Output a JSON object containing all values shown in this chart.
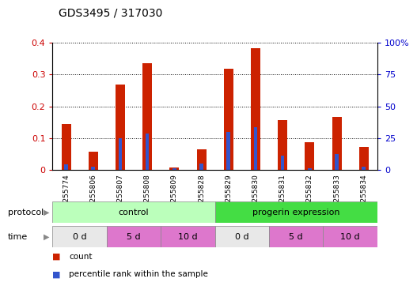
{
  "title": "GDS3495 / 317030",
  "samples": [
    "GSM255774",
    "GSM255806",
    "GSM255807",
    "GSM255808",
    "GSM255809",
    "GSM255828",
    "GSM255829",
    "GSM255830",
    "GSM255831",
    "GSM255832",
    "GSM255833",
    "GSM255834"
  ],
  "red_values": [
    0.145,
    0.057,
    0.268,
    0.335,
    0.008,
    0.065,
    0.318,
    0.383,
    0.158,
    0.088,
    0.168,
    0.072
  ],
  "blue_values": [
    0.018,
    0.01,
    0.1,
    0.115,
    0.005,
    0.02,
    0.12,
    0.135,
    0.045,
    0.005,
    0.05,
    0.01
  ],
  "ylim_left": [
    0,
    0.4
  ],
  "ylim_right": [
    0,
    100
  ],
  "yticks_left": [
    0.0,
    0.1,
    0.2,
    0.3,
    0.4
  ],
  "yticks_right": [
    0,
    25,
    50,
    75,
    100
  ],
  "ytick_labels_right": [
    "0",
    "25",
    "50",
    "75",
    "100%"
  ],
  "ytick_labels_left": [
    "0",
    "0.1",
    "0.2",
    "0.3",
    "0.4"
  ],
  "bar_width": 0.35,
  "red_color": "#cc2200",
  "blue_color": "#3355cc",
  "proto_light_color": "#bbffbb",
  "proto_dark_color": "#44dd44",
  "time_white_color": "#e8e8e8",
  "time_pink_color": "#dd77cc",
  "tick_color_left": "#cc0000",
  "tick_color_right": "#0000cc",
  "bg_color": "#ffffff",
  "plot_bg_color": "#ffffff",
  "grid_color": "#000000",
  "legend_red_label": "count",
  "legend_blue_label": "percentile rank within the sample"
}
